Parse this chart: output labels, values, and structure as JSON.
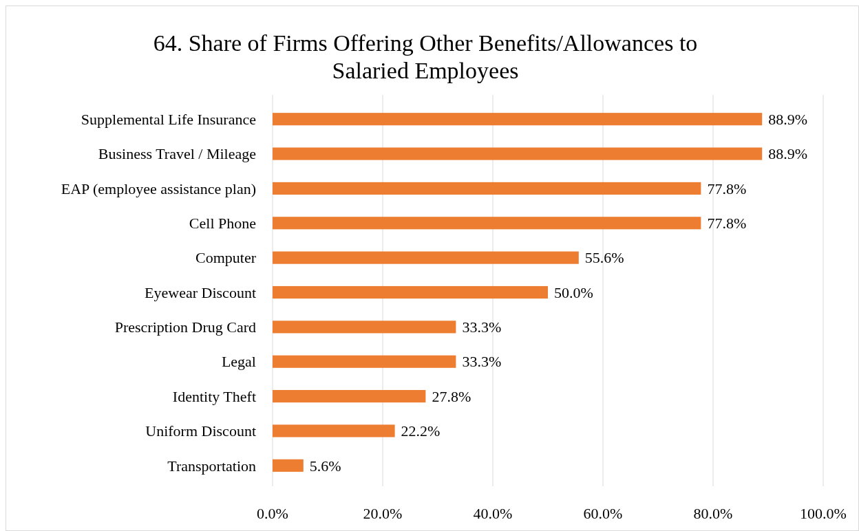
{
  "chart_data": {
    "type": "bar",
    "orientation": "horizontal",
    "title": "64. Share of Firms Offering Other Benefits/Allowances to Salaried Employees",
    "categories": [
      "Supplemental Life Insurance",
      "Business Travel / Mileage",
      "EAP (employee assistance plan)",
      "Cell Phone",
      "Computer",
      "Eyewear Discount",
      "Prescription Drug Card",
      "Legal",
      "Identity Theft",
      "Uniform Discount",
      "Transportation"
    ],
    "values": [
      88.9,
      88.9,
      77.8,
      77.8,
      55.6,
      50.0,
      33.3,
      33.3,
      27.8,
      22.2,
      5.6
    ],
    "value_labels": [
      "88.9%",
      "88.9%",
      "77.8%",
      "77.8%",
      "55.6%",
      "50.0%",
      "33.3%",
      "33.3%",
      "27.8%",
      "22.2%",
      "5.6%"
    ],
    "color": "#ed7d31",
    "xlim": [
      0,
      100
    ],
    "xticks": [
      {
        "value": 0,
        "label": "0.0%"
      },
      {
        "value": 20,
        "label": "20.0%"
      },
      {
        "value": 40,
        "label": "40.0%"
      },
      {
        "value": 60,
        "label": "60.0%"
      },
      {
        "value": 80,
        "label": "80.0%"
      },
      {
        "value": 100,
        "label": "100.0%"
      }
    ],
    "grid": "x"
  }
}
